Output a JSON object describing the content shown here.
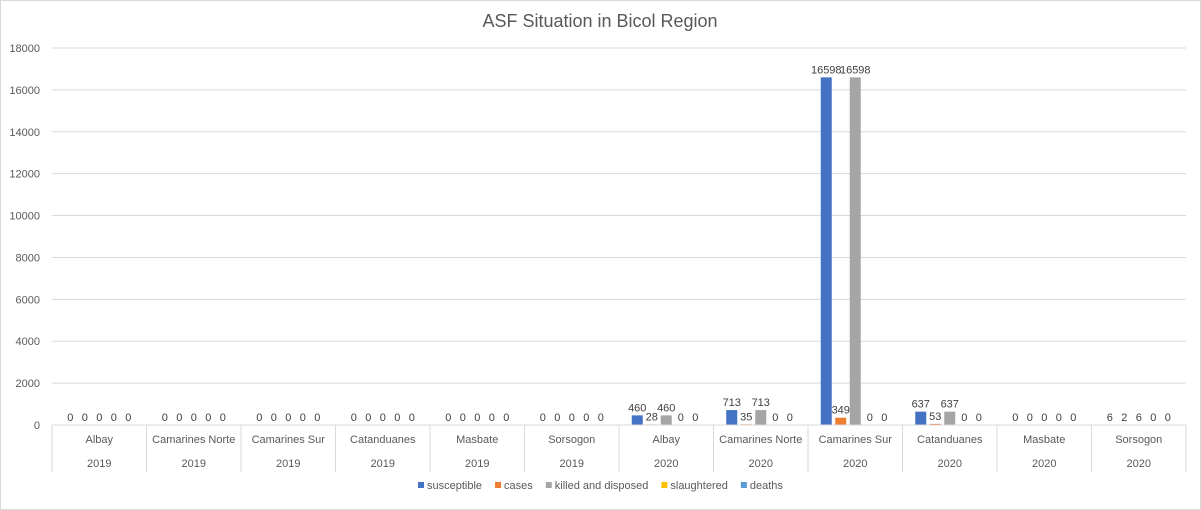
{
  "chart_data": {
    "type": "bar",
    "title": "ASF Situation in Bicol Region",
    "xlabel": "",
    "ylabel": "",
    "ylim": [
      0,
      18000
    ],
    "yticks": [
      0,
      2000,
      4000,
      6000,
      8000,
      10000,
      12000,
      14000,
      16000,
      18000
    ],
    "grid": true,
    "legend_position": "bottom",
    "categories": [
      {
        "province": "Albay",
        "year": "2019"
      },
      {
        "province": "Camarines Norte",
        "year": "2019"
      },
      {
        "province": "Camarines Sur",
        "year": "2019"
      },
      {
        "province": "Catanduanes",
        "year": "2019"
      },
      {
        "province": "Masbate",
        "year": "2019"
      },
      {
        "province": "Sorsogon",
        "year": "2019"
      },
      {
        "province": "Albay",
        "year": "2020"
      },
      {
        "province": "Camarines Norte",
        "year": "2020"
      },
      {
        "province": "Camarines Sur",
        "year": "2020"
      },
      {
        "province": "Catanduanes",
        "year": "2020"
      },
      {
        "province": "Masbate",
        "year": "2020"
      },
      {
        "province": "Sorsogon",
        "year": "2020"
      }
    ],
    "series": [
      {
        "name": "susceptible",
        "color": "#4472c4",
        "values": [
          0,
          0,
          0,
          0,
          0,
          0,
          460,
          713,
          16598,
          637,
          0,
          6
        ]
      },
      {
        "name": "cases",
        "color": "#ed7d31",
        "values": [
          0,
          0,
          0,
          0,
          0,
          0,
          28,
          35,
          349,
          53,
          0,
          2
        ]
      },
      {
        "name": "killed and disposed",
        "color": "#a5a5a5",
        "values": [
          0,
          0,
          0,
          0,
          0,
          0,
          460,
          713,
          16598,
          637,
          0,
          6
        ]
      },
      {
        "name": "slaughtered",
        "color": "#ffc000",
        "values": [
          0,
          0,
          0,
          0,
          0,
          0,
          0,
          0,
          0,
          0,
          0,
          0
        ]
      },
      {
        "name": "deaths",
        "color": "#5b9bd5",
        "values": [
          0,
          0,
          0,
          0,
          0,
          0,
          0,
          0,
          0,
          0,
          0,
          0
        ]
      }
    ]
  }
}
